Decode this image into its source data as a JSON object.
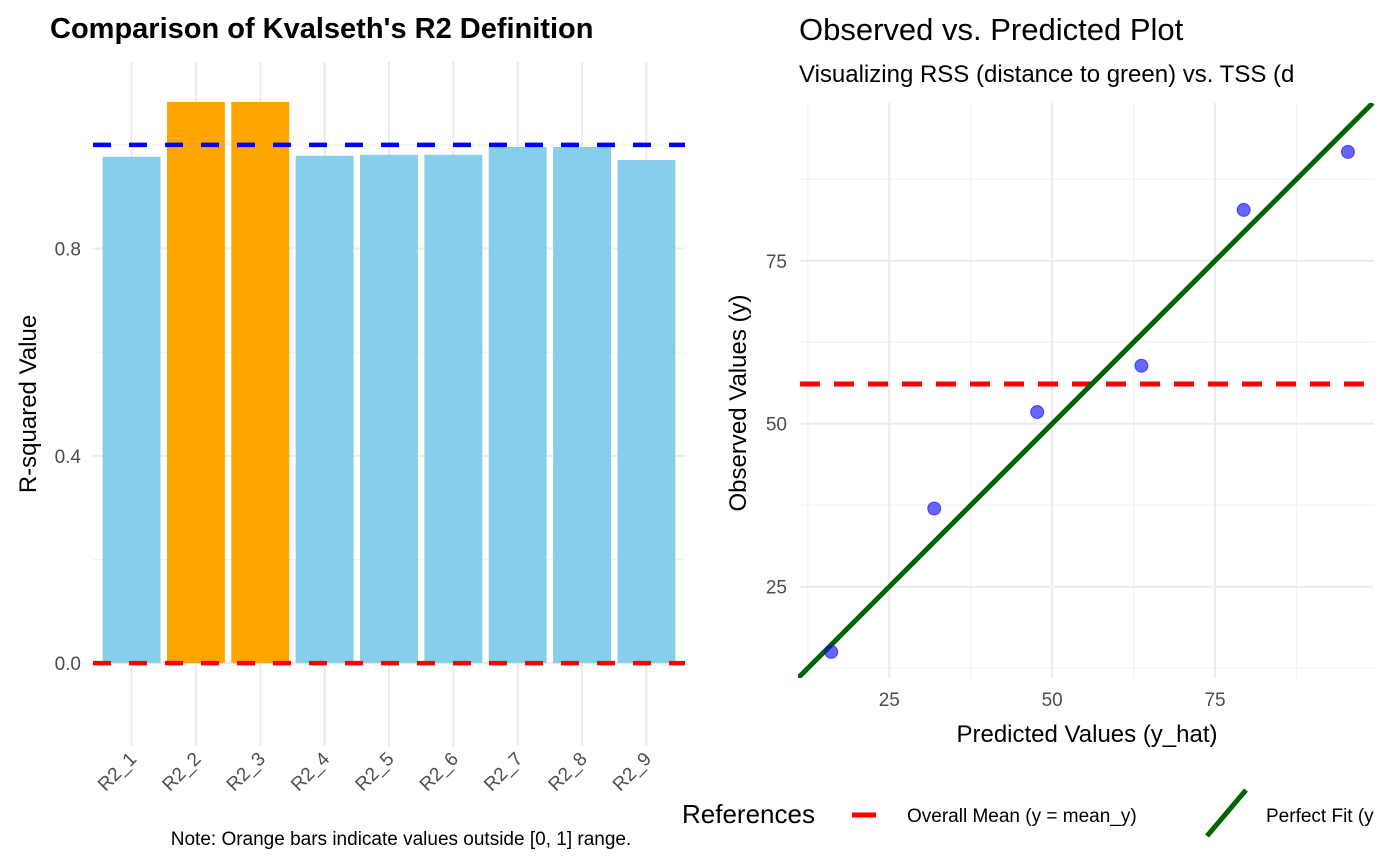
{
  "chart_data": [
    {
      "type": "bar",
      "title": "Comparison of Kvalseth's R2 Definition",
      "xlabel": "",
      "ylabel": "R-squared Value",
      "categories": [
        "R2_1",
        "R2_2",
        "R2_3",
        "R2_4",
        "R2_5",
        "R2_6",
        "R2_7",
        "R2_8",
        "R2_9"
      ],
      "values": [
        0.977,
        1.083,
        1.083,
        0.979,
        0.981,
        0.981,
        0.996,
        0.996,
        0.971
      ],
      "bar_colors": [
        "#87CEEB",
        "#FFA500",
        "#FFA500",
        "#87CEEB",
        "#87CEEB",
        "#87CEEB",
        "#87CEEB",
        "#87CEEB",
        "#87CEEB"
      ],
      "ylim": [
        -0.16,
        1.16
      ],
      "yticks": [
        0.0,
        0.4,
        0.8
      ],
      "ytick_labels": [
        "0.0",
        "0.4",
        "0.8"
      ],
      "reference_lines": [
        {
          "y": 1.0,
          "color": "#0000FF",
          "style": "dashed"
        },
        {
          "y": 0.0,
          "color": "#FF0000",
          "style": "dashed"
        }
      ],
      "grid": true,
      "caption": "Note: Orange bars indicate values outside [0, 1] range."
    },
    {
      "type": "scatter",
      "title": "Observed vs. Predicted Plot",
      "subtitle": "Visualizing RSS (distance to green) vs. TSS (d",
      "xlabel": "Predicted Values (y_hat)",
      "ylabel": "Observed Values (y)",
      "points": [
        {
          "x": 16.1,
          "y": 15.0
        },
        {
          "x": 31.9,
          "y": 37.0
        },
        {
          "x": 47.7,
          "y": 51.8
        },
        {
          "x": 63.7,
          "y": 58.9
        },
        {
          "x": 79.4,
          "y": 82.8
        },
        {
          "x": 95.4,
          "y": 91.7
        }
      ],
      "point_color": "#0000FF",
      "xlim": [
        11.3,
        99.4
      ],
      "ylim": [
        11.0,
        99.2
      ],
      "xticks": [
        25,
        50,
        75
      ],
      "yticks": [
        25,
        50,
        75
      ],
      "tick_labels": [
        "25",
        "50",
        "75"
      ],
      "reference_lines": [
        {
          "name": "Overall Mean (y = mean_y)",
          "type": "hline",
          "y": 56.1,
          "color": "#FF0000",
          "style": "dashed"
        },
        {
          "name": "Perfect Fit (y",
          "type": "abline",
          "slope": 1,
          "intercept": 0,
          "color": "#006400",
          "style": "solid"
        }
      ],
      "legend": {
        "title": "References",
        "position": "bottom",
        "entries": [
          "Overall Mean (y = mean_y)",
          "Perfect Fit (y"
        ]
      },
      "grid": true
    }
  ]
}
